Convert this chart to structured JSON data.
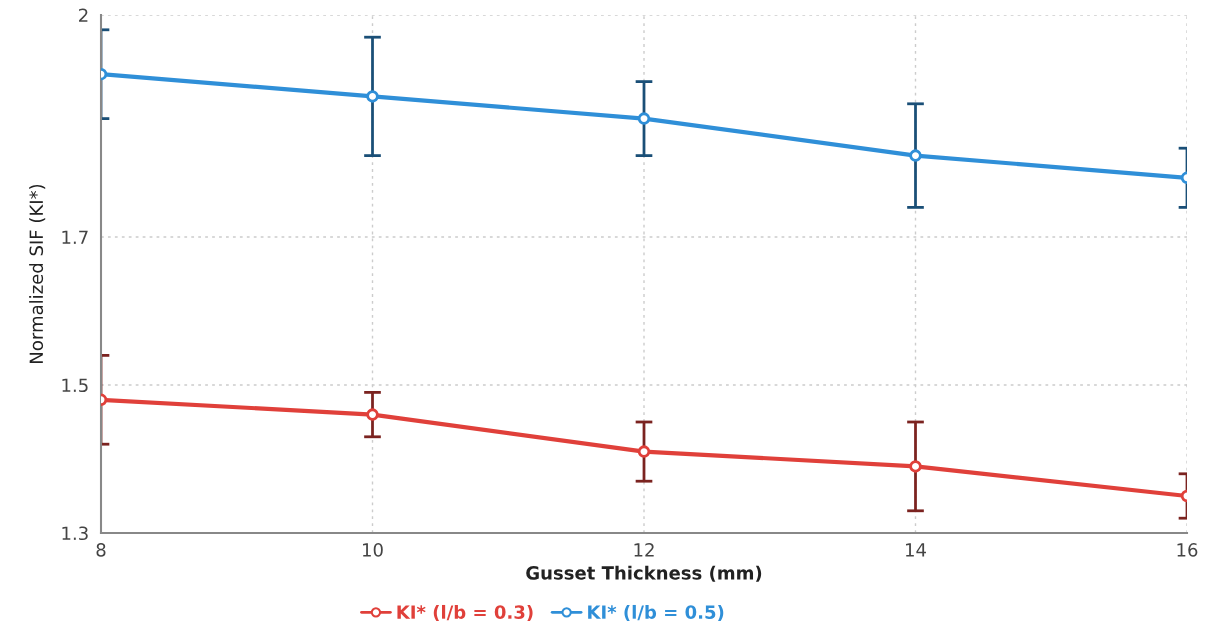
{
  "chart_data": {
    "type": "line",
    "xlabel": "Gusset Thickness (mm)",
    "ylabel": "Normalized SIF (KI*)",
    "x": [
      8,
      10,
      12,
      14,
      16
    ],
    "xlim": [
      8,
      16
    ],
    "xticks": [
      8,
      10,
      12,
      14,
      16
    ],
    "ylim": [
      1.3,
      2.0
    ],
    "yticks": [
      1.3,
      1.5,
      1.7,
      2
    ],
    "grid": true,
    "legend": "bottom",
    "marker": "circle",
    "line_style": "solid",
    "series": [
      {
        "name": "KI* (l/b = 0.3)",
        "color": "#e0403a",
        "values": [
          1.48,
          1.46,
          1.41,
          1.39,
          1.35
        ],
        "errors": [
          0.06,
          0.03,
          0.04,
          0.06,
          0.03
        ]
      },
      {
        "name": "KI* (l/b = 0.5)",
        "color": "#2f8fd8",
        "values": [
          1.92,
          1.89,
          1.86,
          1.81,
          1.78
        ],
        "errors": [
          0.06,
          0.08,
          0.05,
          0.07,
          0.04
        ]
      }
    ]
  }
}
